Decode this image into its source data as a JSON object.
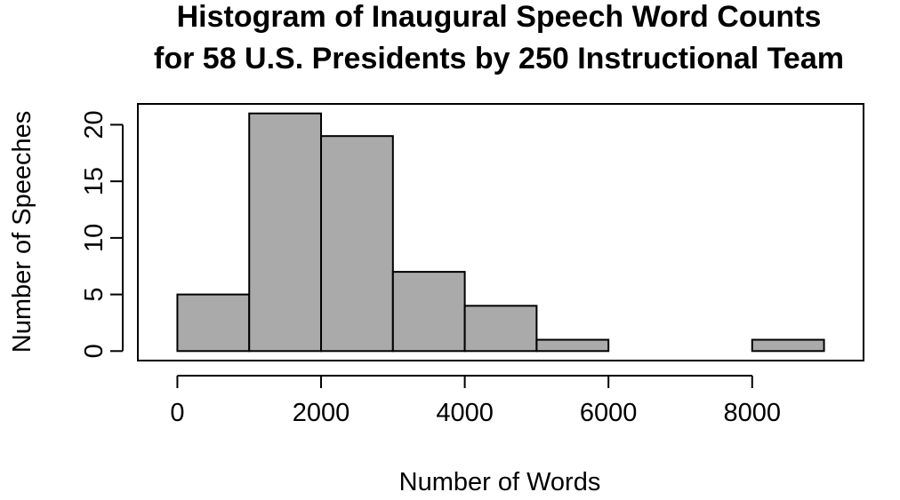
{
  "chart_data": {
    "type": "bar",
    "title_lines": [
      "Histogram of Inaugural Speech Word Counts",
      "for 58 U.S. Presidents by 250 Instructional Team"
    ],
    "xlabel": "Number of Words",
    "ylabel": "Number of Speeches",
    "bins": [
      {
        "from": 0,
        "to": 1000,
        "count": 5
      },
      {
        "from": 1000,
        "to": 2000,
        "count": 21
      },
      {
        "from": 2000,
        "to": 3000,
        "count": 19
      },
      {
        "from": 3000,
        "to": 4000,
        "count": 7
      },
      {
        "from": 4000,
        "to": 5000,
        "count": 4
      },
      {
        "from": 5000,
        "to": 6000,
        "count": 1
      },
      {
        "from": 6000,
        "to": 7000,
        "count": 0
      },
      {
        "from": 7000,
        "to": 8000,
        "count": 0
      },
      {
        "from": 8000,
        "to": 9000,
        "count": 1
      }
    ],
    "xlim": [
      -550,
      9550
    ],
    "ylim": [
      -0.84,
      21.84
    ],
    "x_ticks": [
      0,
      2000,
      4000,
      6000,
      8000
    ],
    "x_tick_labels": [
      "0",
      "2000",
      "4000",
      "6000",
      "8000"
    ],
    "y_ticks": [
      0,
      5,
      10,
      15,
      20
    ],
    "y_tick_labels": [
      "0",
      "5",
      "10",
      "15",
      "20"
    ],
    "bar_color": "#aaaaaa",
    "edge_color": "#000000",
    "grid": false,
    "legend": "none"
  }
}
